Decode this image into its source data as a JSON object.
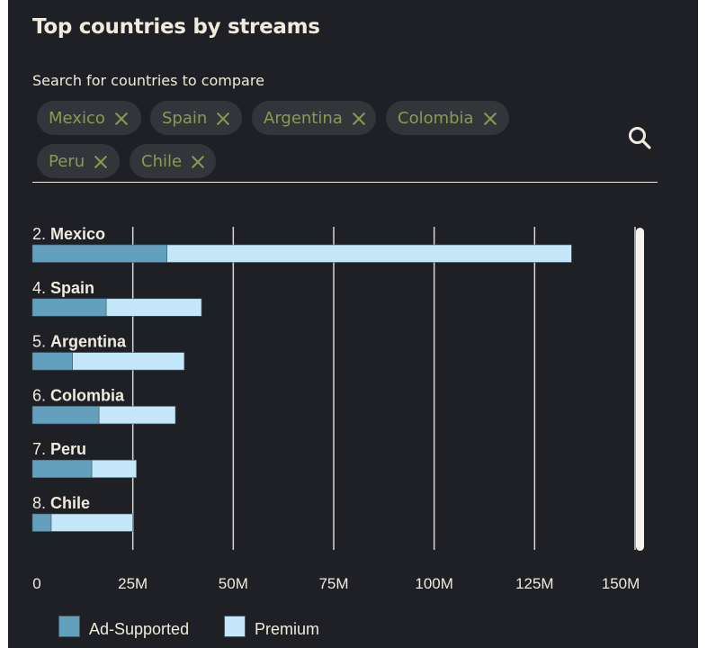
{
  "title": "Top countries by streams",
  "search": {
    "label": "Search for countries to compare",
    "chips": [
      "Mexico",
      "Spain",
      "Argentina",
      "Colombia",
      "Peru",
      "Chile"
    ],
    "icon": "search-icon"
  },
  "colors": {
    "background": "#1f2026",
    "text": "#f0ebdc",
    "chip_bg": "#34353a",
    "chip_text": "#8a9a52",
    "ad_supported": "#62a0bd",
    "premium": "#c4e8f9"
  },
  "chart_data": {
    "type": "bar",
    "orientation": "horizontal",
    "stacked": true,
    "title": "Top countries by streams",
    "categories": [
      {
        "rank": "2.",
        "name": "Mexico"
      },
      {
        "rank": "4.",
        "name": "Spain"
      },
      {
        "rank": "5.",
        "name": "Argentina"
      },
      {
        "rank": "6.",
        "name": "Colombia"
      },
      {
        "rank": "7.",
        "name": "Peru"
      },
      {
        "rank": "8.",
        "name": "Chile"
      }
    ],
    "series": [
      {
        "name": "Ad-Supported",
        "color": "#62a0bd",
        "values": [
          33.5,
          18.4,
          10.0,
          16.6,
          14.8,
          4.7
        ]
      },
      {
        "name": "Premium",
        "color": "#c4e8f9",
        "values": [
          100.7,
          23.7,
          27.8,
          19.0,
          11.1,
          20.3
        ]
      }
    ],
    "xlim": [
      0,
      150
    ],
    "x_unit": "M",
    "xticks": [
      0,
      25,
      50,
      75,
      100,
      125,
      150
    ],
    "xtick_labels": [
      "0",
      "25M",
      "50M",
      "75M",
      "100M",
      "125M",
      "150M"
    ],
    "grid": true,
    "legend": "bottom-left"
  }
}
